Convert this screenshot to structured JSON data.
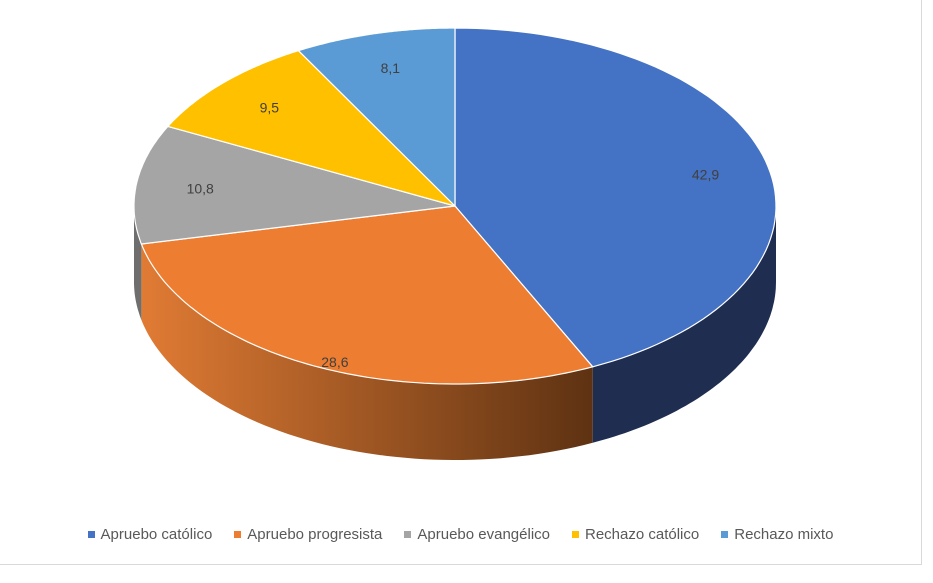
{
  "chart_data": {
    "type": "pie",
    "style": "3d",
    "title": "",
    "categories": [
      "Apruebo católico",
      "Apruebo progresista",
      "Apruebo evangélico",
      "Rechazo católico",
      "Rechazo mixto"
    ],
    "values": [
      42.9,
      28.6,
      10.8,
      9.5,
      8.1
    ],
    "labels": [
      "42,9",
      "28,6",
      "10,8",
      "9,5",
      "8,1"
    ],
    "colors": [
      "#4472c4",
      "#ed7d31",
      "#a5a5a5",
      "#ffc000",
      "#5b9bd5"
    ],
    "side_colors": [
      "#1f2d50",
      "#8a4a1e",
      "#6e6e6e",
      "#a07800",
      "#3b6c99"
    ],
    "legend_position": "bottom"
  }
}
